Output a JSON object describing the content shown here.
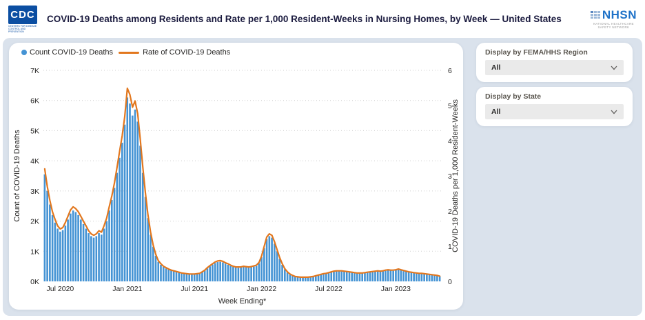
{
  "header": {
    "title": "COVID-19 Deaths among Residents and Rate per 1,000 Resident-Weeks in Nursing Homes, by Week — United States",
    "cdc_logo": {
      "acronym": "CDC",
      "tagline_line1": "CENTERS FOR DISEASE",
      "tagline_line2": "CONTROL AND PREVENTION"
    },
    "nhsn_logo": {
      "acronym": "NHSN",
      "tagline_line1": "NATIONAL HEALTHCARE",
      "tagline_line2": "SAFETY NETWORK"
    }
  },
  "filters": [
    {
      "label": "Display by FEMA/HHS Region",
      "value": "All"
    },
    {
      "label": "Display by State",
      "value": "All"
    }
  ],
  "colors": {
    "bar": "#4493D4",
    "line": "#E2771E",
    "panel": "#DAE2EC",
    "gridline": "#CFCFCF",
    "tick_text": "#252423"
  },
  "chart_data": {
    "type": "combo",
    "title": "COVID-19 Deaths among Residents and Rate per 1,000 Resident-Weeks in Nursing Homes, by Week — United States",
    "left_axis": {
      "label": "Count of COVID-19 Deaths",
      "ticks": [
        "0K",
        "1K",
        "2K",
        "3K",
        "4K",
        "5K",
        "6K",
        "7K"
      ],
      "range": [
        0,
        7000
      ]
    },
    "right_axis": {
      "label": "COVID-19 Deaths per 1,000 Resident-Weeks",
      "ticks": [
        "0",
        "1",
        "2",
        "3",
        "4",
        "5",
        "6"
      ],
      "range": [
        0,
        6
      ]
    },
    "x_axis": {
      "label": "Week Ending*",
      "tick_labels": [
        "Jul 2020",
        "Jan 2021",
        "Jul 2021",
        "Jan 2022",
        "Jul 2022",
        "Jan 2023"
      ],
      "tick_indices": [
        6,
        32,
        58,
        84,
        110,
        136
      ]
    },
    "grid": "dotted-horizontal",
    "legend_position": "top-left",
    "series": [
      {
        "name": "Count COVID-19 Deaths",
        "type": "bar",
        "axis": "left",
        "color": "#4493D4",
        "values": [
          3550,
          3000,
          2550,
          2200,
          1950,
          1750,
          1650,
          1700,
          1850,
          2050,
          2250,
          2350,
          2300,
          2200,
          2050,
          1900,
          1750,
          1600,
          1500,
          1450,
          1500,
          1600,
          1550,
          1750,
          2000,
          2350,
          2700,
          3100,
          3600,
          4100,
          4600,
          5200,
          6100,
          5900,
          5500,
          5700,
          5300,
          4500,
          3600,
          2800,
          2100,
          1550,
          1150,
          850,
          650,
          550,
          480,
          430,
          390,
          360,
          330,
          310,
          290,
          270,
          255,
          245,
          235,
          230,
          230,
          240,
          260,
          300,
          360,
          430,
          500,
          560,
          610,
          640,
          650,
          630,
          590,
          550,
          510,
          480,
          460,
          450,
          460,
          480,
          470,
          460,
          470,
          490,
          510,
          600,
          800,
          1100,
          1400,
          1500,
          1450,
          1250,
          1000,
          750,
          550,
          400,
          300,
          230,
          190,
          160,
          145,
          135,
          130,
          130,
          135,
          145,
          160,
          180,
          200,
          220,
          240,
          260,
          280,
          300,
          320,
          330,
          335,
          330,
          320,
          310,
          300,
          290,
          280,
          270,
          265,
          270,
          280,
          290,
          300,
          310,
          320,
          330,
          320,
          330,
          350,
          370,
          360,
          350,
          370,
          390,
          370,
          340,
          320,
          300,
          290,
          280,
          270,
          260,
          250,
          240,
          230,
          220,
          210,
          200,
          185,
          170
        ]
      },
      {
        "name": "Rate of COVID-19 Deaths",
        "type": "line",
        "axis": "right",
        "color": "#E2771E",
        "values": [
          3.2,
          2.7,
          2.3,
          1.98,
          1.76,
          1.58,
          1.49,
          1.53,
          1.67,
          1.85,
          2.03,
          2.12,
          2.07,
          1.98,
          1.85,
          1.71,
          1.58,
          1.44,
          1.35,
          1.31,
          1.35,
          1.44,
          1.4,
          1.58,
          1.8,
          2.12,
          2.43,
          2.79,
          3.24,
          3.69,
          4.14,
          4.68,
          5.49,
          5.31,
          4.95,
          5.13,
          4.77,
          4.05,
          3.24,
          2.52,
          1.89,
          1.4,
          1.04,
          0.77,
          0.59,
          0.5,
          0.43,
          0.39,
          0.35,
          0.32,
          0.3,
          0.28,
          0.26,
          0.24,
          0.23,
          0.22,
          0.21,
          0.21,
          0.21,
          0.22,
          0.23,
          0.27,
          0.32,
          0.39,
          0.45,
          0.5,
          0.55,
          0.58,
          0.59,
          0.57,
          0.53,
          0.5,
          0.46,
          0.43,
          0.41,
          0.41,
          0.41,
          0.43,
          0.42,
          0.41,
          0.42,
          0.44,
          0.46,
          0.54,
          0.72,
          0.99,
          1.26,
          1.35,
          1.31,
          1.13,
          0.9,
          0.68,
          0.5,
          0.36,
          0.27,
          0.21,
          0.17,
          0.14,
          0.13,
          0.12,
          0.12,
          0.12,
          0.12,
          0.13,
          0.14,
          0.16,
          0.18,
          0.2,
          0.22,
          0.23,
          0.25,
          0.27,
          0.29,
          0.3,
          0.3,
          0.3,
          0.29,
          0.28,
          0.27,
          0.26,
          0.25,
          0.24,
          0.24,
          0.24,
          0.25,
          0.26,
          0.27,
          0.28,
          0.29,
          0.3,
          0.29,
          0.3,
          0.32,
          0.33,
          0.32,
          0.32,
          0.33,
          0.35,
          0.33,
          0.31,
          0.29,
          0.27,
          0.26,
          0.25,
          0.24,
          0.23,
          0.23,
          0.22,
          0.21,
          0.2,
          0.19,
          0.18,
          0.17,
          0.15
        ]
      }
    ]
  }
}
